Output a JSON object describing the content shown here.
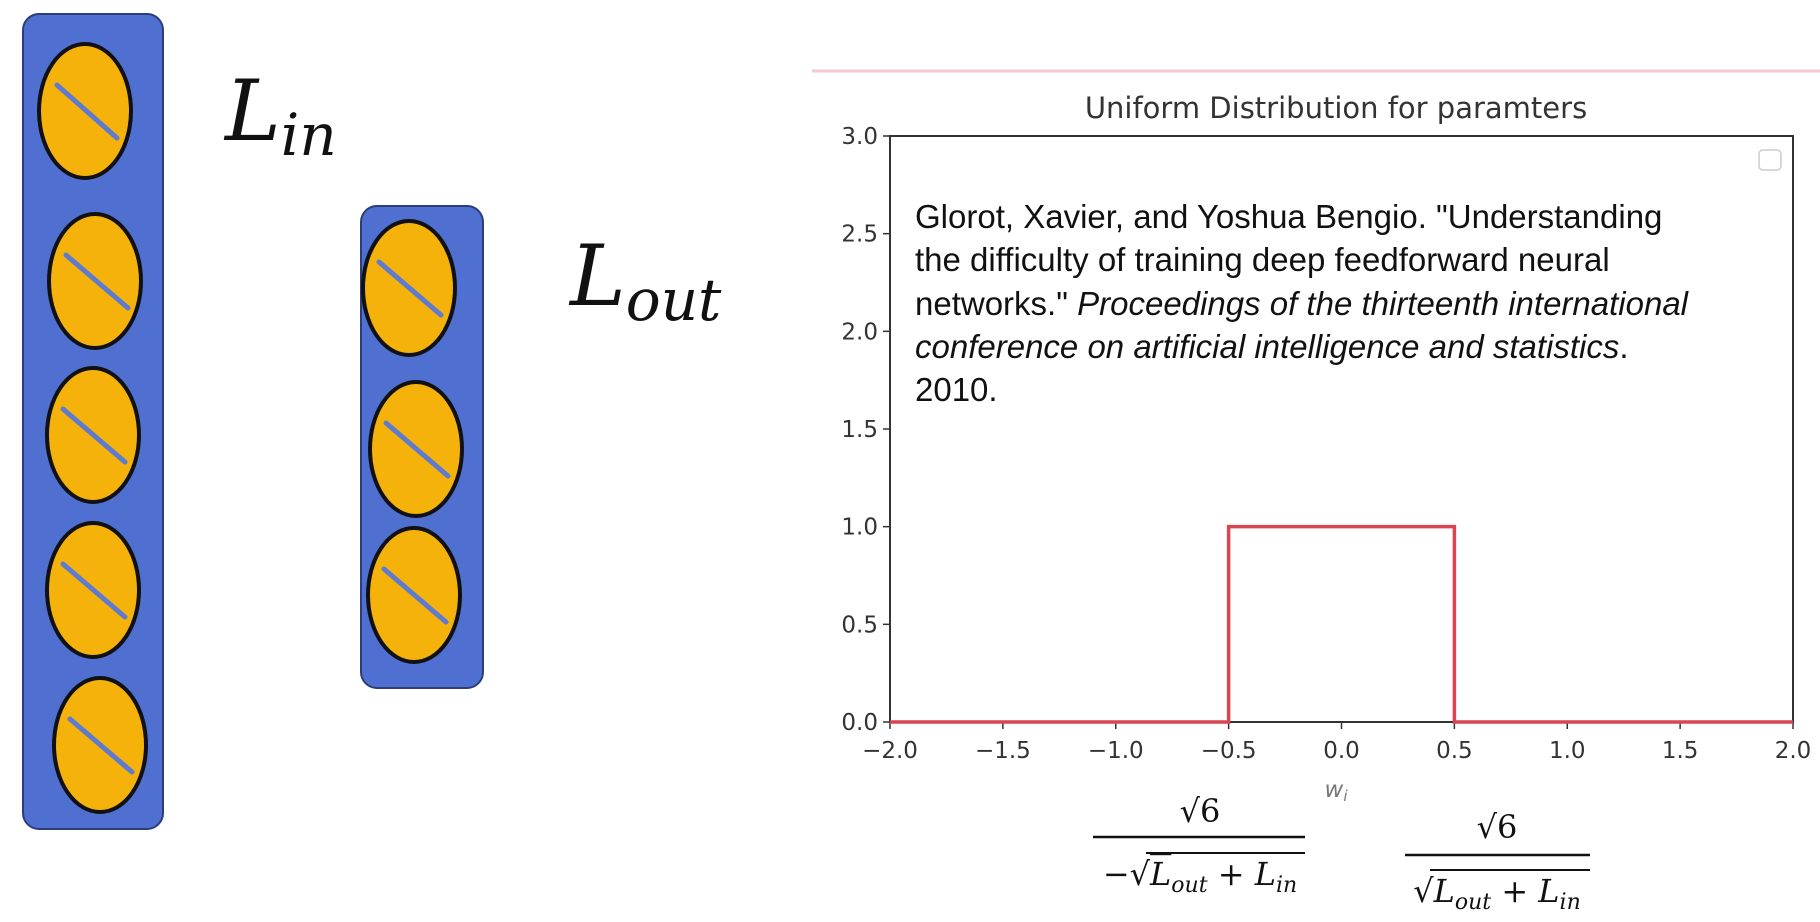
{
  "layer_labels": {
    "in": {
      "main": "L",
      "sub": "in"
    },
    "out": {
      "main": "L",
      "sub": "out"
    }
  },
  "layers": {
    "in_neurons": 5,
    "out_neurons": 3
  },
  "colors": {
    "layer_box": "#4f6fd1",
    "neuron_fill": "#f4b20b",
    "neuron_stroke": "#111111",
    "neuron_slash": "#5e7bd0",
    "curve": "#d94552",
    "top_rule": "#f2c9cd"
  },
  "reference": {
    "line1": "Glorot, Xavier, and Yoshua Bengio. \"Understanding",
    "line2": "the difficulty of training deep feedforward neural",
    "line3_plain": "networks.\" ",
    "line3_italic": "Proceedings of the thirteenth international",
    "line4_italic": "conference on artificial intelligence and statistics",
    "line4_plain": ".",
    "line5": "2010."
  },
  "formulas": {
    "left": {
      "numerator": "√6",
      "prefix": "−√",
      "L1": "L",
      "s1": "out",
      "plus": " + ",
      "L2": "L",
      "s2": "in"
    },
    "right": {
      "numerator": "√6",
      "prefix": "√",
      "L1": "L",
      "s1": "out",
      "plus": " + ",
      "L2": "L",
      "s2": "in"
    }
  },
  "chart_data": {
    "type": "line",
    "title": "Uniform Distribution for paramters",
    "xlabel": "wi",
    "ylabel": "",
    "xlim": [
      -2.0,
      2.0
    ],
    "ylim": [
      0.0,
      3.0
    ],
    "xticks": [
      "−2.0",
      "−1.5",
      "−1.0",
      "−0.5",
      "0.0",
      "0.5",
      "1.0",
      "1.5",
      "2.0"
    ],
    "yticks": [
      "0.0",
      "0.5",
      "1.0",
      "1.5",
      "2.0",
      "2.5",
      "3.0"
    ],
    "grid": false,
    "legend": "top-right (empty)",
    "series": [
      {
        "x": [
          -2.0,
          -0.5,
          -0.5,
          0.5,
          0.5,
          2.0
        ],
        "y": [
          0.0,
          0.0,
          1.0,
          1.0,
          0.0,
          0.0
        ]
      }
    ]
  }
}
